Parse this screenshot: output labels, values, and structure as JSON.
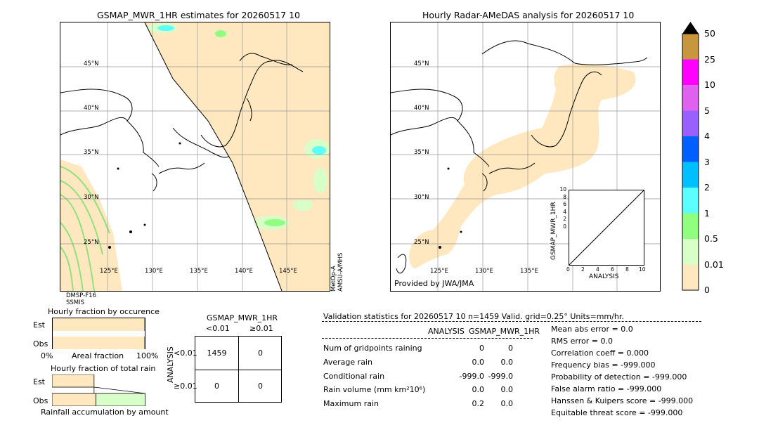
{
  "left_panel": {
    "title": "GSMAP_MWR_1HR estimates for 20260517 10",
    "lat_labels": [
      "45°N",
      "40°N",
      "35°N",
      "30°N",
      "25°N"
    ],
    "lon_labels": [
      "125°E",
      "130°E",
      "135°E",
      "140°E",
      "145°E"
    ],
    "sat_label_left": [
      "DMSP-F16",
      "SSMIS"
    ],
    "sat_label_right": [
      "MetOp-A",
      "AMSU-A/MHS"
    ]
  },
  "right_panel": {
    "title": "Hourly Radar-AMeDAS analysis for 20260517 10",
    "lat_labels": [
      "45°N",
      "40°N",
      "35°N",
      "30°N",
      "25°N"
    ],
    "lon_labels": [
      "125°E",
      "130°E",
      "135°E"
    ],
    "provided_by": "Provided by JWA/JMA"
  },
  "inset": {
    "ylabel": "GSMAP_MWR_1HR",
    "xlabel": "ANALYSIS",
    "ticks": [
      "0",
      "2",
      "4",
      "6",
      "8",
      "10"
    ]
  },
  "colorbar": {
    "labels": [
      "50",
      "25",
      "10",
      "5",
      "4",
      "3",
      "2",
      "1",
      "0.5",
      "0.01",
      "0"
    ],
    "colors": [
      "#c8963c",
      "#ff00ff",
      "#e060f0",
      "#9a60ff",
      "#0060ff",
      "#00bfff",
      "#5cffff",
      "#90ff80",
      "#d8ffc8",
      "#ffe8c0"
    ]
  },
  "fraction_occurrence": {
    "title": "Hourly fraction by occurence",
    "est_label": "Est",
    "obs_label": "Obs",
    "axis_left": "0%",
    "axis_mid": "Areal fraction",
    "axis_right": "100%",
    "est_fraction": 0.99,
    "obs_fraction": 0.99
  },
  "fraction_total": {
    "title": "Hourly fraction of total rain",
    "est_label": "Est",
    "obs_label": "Obs",
    "axis_label": "Rainfall accumulation by amount",
    "est_fraction": 0.45,
    "obs_fraction": 0.47
  },
  "contingency": {
    "title": "GSMAP_MWR_1HR",
    "col_headers": [
      "<0.01",
      "≥0.01"
    ],
    "row_axis": "ANALYSIS",
    "row_headers": [
      "<0.01",
      "≥0.01"
    ],
    "cells": [
      [
        "1459",
        "0"
      ],
      [
        "0",
        "0"
      ]
    ]
  },
  "validation": {
    "header": "Validation statistics for 20260517 10  n=1459 Valid. grid=0.25° Units=mm/hr.",
    "col_analysis": "ANALYSIS",
    "col_gsmap": "GSMAP_MWR_1HR",
    "rows": [
      {
        "label": "Num of gridpoints raining",
        "analysis": "0",
        "gsmap": "0"
      },
      {
        "label": "Average rain",
        "analysis": "0.0",
        "gsmap": "0.0"
      },
      {
        "label": "Conditional rain",
        "analysis": "-999.0",
        "gsmap": "-999.0"
      },
      {
        "label": "Rain volume (mm km²10⁶)",
        "analysis": "0.0",
        "gsmap": "0.0"
      },
      {
        "label": "Maximum rain",
        "analysis": "0.2",
        "gsmap": "0.0"
      }
    ],
    "scores": [
      "Mean abs error =    0.0",
      "RMS error =    0.0",
      "Correlation coeff =  0.000",
      "Frequency bias = -999.000",
      "Probability of detection = -999.000",
      "False alarm ratio = -999.000",
      "Hanssen & Kuipers score = -999.000",
      "Equitable threat score = -999.000"
    ]
  }
}
